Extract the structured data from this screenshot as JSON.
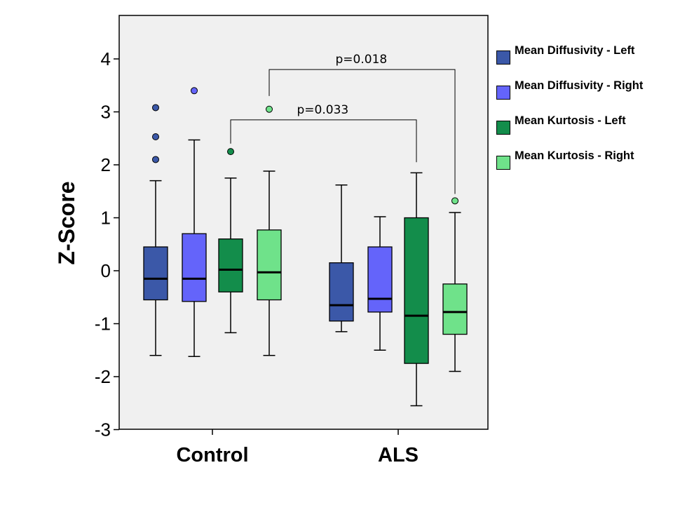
{
  "chart_data": {
    "type": "boxplot",
    "title": "",
    "xlabel": "",
    "ylabel": "Z-Score",
    "ylim": [
      -3,
      4.5
    ],
    "yticks": [
      "4",
      "3",
      "2",
      "1",
      "0",
      "-1",
      "-2",
      "-3"
    ],
    "ytick_values": [
      4,
      3,
      2,
      1,
      0,
      -1,
      -2,
      -3
    ],
    "categories": [
      "Control",
      "ALS"
    ],
    "colors": {
      "background": "#f0f0f0",
      "Mean Diffusivity - Left": "#3b58a8",
      "Mean Diffusivity - Right": "#6464fa",
      "Mean Kurtosis - Left": "#138d4b",
      "Mean Kurtosis - Right": "#6fe28a"
    },
    "series": [
      {
        "name": "Mean Diffusivity - Left",
        "boxes": [
          {
            "group": "Control",
            "min": -1.6,
            "q1": -0.55,
            "median": -0.15,
            "q3": 0.45,
            "max": 1.7,
            "outliers": [
              2.1,
              2.53,
              3.08
            ]
          },
          {
            "group": "ALS",
            "min": -1.15,
            "q1": -0.95,
            "median": -0.65,
            "q3": 0.15,
            "max": 1.62,
            "outliers": []
          }
        ]
      },
      {
        "name": "Mean Diffusivity - Right",
        "boxes": [
          {
            "group": "Control",
            "min": -1.62,
            "q1": -0.58,
            "median": -0.15,
            "q3": 0.7,
            "max": 2.47,
            "outliers": [
              3.4
            ]
          },
          {
            "group": "ALS",
            "min": -1.5,
            "q1": -0.78,
            "median": -0.53,
            "q3": 0.45,
            "max": 1.02,
            "outliers": []
          }
        ]
      },
      {
        "name": "Mean Kurtosis - Left",
        "boxes": [
          {
            "group": "Control",
            "min": -1.17,
            "q1": -0.4,
            "median": 0.02,
            "q3": 0.6,
            "max": 1.75,
            "outliers": [
              2.25
            ]
          },
          {
            "group": "ALS",
            "min": -2.55,
            "q1": -1.75,
            "median": -0.85,
            "q3": 1.0,
            "max": 1.85,
            "outliers": []
          }
        ]
      },
      {
        "name": "Mean Kurtosis - Right",
        "boxes": [
          {
            "group": "Control",
            "min": -1.6,
            "q1": -0.55,
            "median": -0.03,
            "q3": 0.77,
            "max": 1.88,
            "outliers": [
              3.05
            ]
          },
          {
            "group": "ALS",
            "min": -1.9,
            "q1": -1.2,
            "median": -0.78,
            "q3": -0.25,
            "max": 1.1,
            "outliers": [
              1.32
            ]
          }
        ]
      }
    ],
    "annotations": [
      {
        "text": "p=0.018",
        "from": {
          "group": "Control",
          "series": "Mean Kurtosis - Right"
        },
        "to": {
          "group": "ALS",
          "series": "Mean Kurtosis - Right"
        },
        "bracket_y": 3.8,
        "from_y": 3.3,
        "to_y": 1.45
      },
      {
        "text": "p=0.033",
        "from": {
          "group": "Control",
          "series": "Mean Kurtosis - Left"
        },
        "to": {
          "group": "ALS",
          "series": "Mean Kurtosis - Left"
        },
        "bracket_y": 2.85,
        "from_y": 2.4,
        "to_y": 2.05
      }
    ],
    "legend": {
      "position": "right",
      "entries": [
        "Mean Diffusivity - Left",
        "Mean Diffusivity - Right",
        "Mean Kurtosis - Left",
        "Mean Kurtosis - Right"
      ]
    }
  }
}
